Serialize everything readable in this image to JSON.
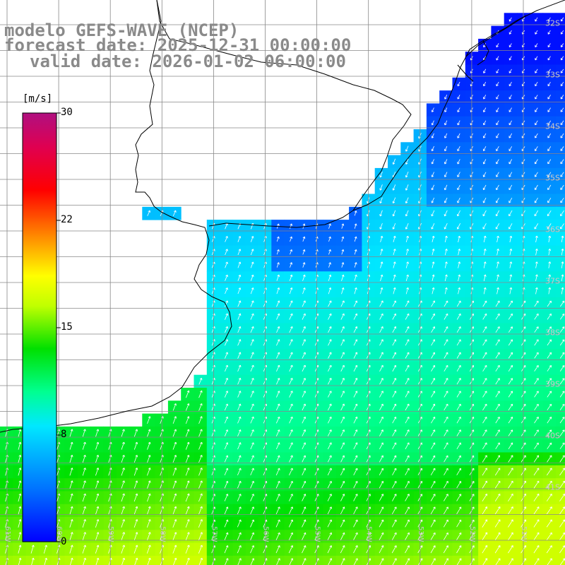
{
  "title": {
    "model": "modelo GEFS-WAVE (NCEP)",
    "forecast": "forecast date: 2025-12-31 00:00:00",
    "valid": "valid date: 2026-01-02 06:00:00"
  },
  "colorbar": {
    "unit": "[m/s]",
    "min": 0,
    "max": 30,
    "ticks": [
      "30",
      "22",
      "15",
      "8",
      "0"
    ],
    "tick_values": [
      30,
      22,
      15,
      8,
      0
    ],
    "colors": [
      "#0000ff",
      "#0070ff",
      "#00e8ff",
      "#00ff90",
      "#00e000",
      "#c0ff00",
      "#ffff00",
      "#ff8000",
      "#ff0000",
      "#e00050",
      "#b01080"
    ]
  },
  "lat_labels": [
    "32S",
    "33S",
    "34S",
    "35S",
    "36S",
    "37S",
    "38S",
    "39S",
    "40S",
    "41S"
  ],
  "lon_labels": [
    "61W",
    "60W",
    "59W",
    "58W",
    "57W",
    "56W",
    "55W",
    "54W",
    "53W",
    "52W",
    "51W"
  ],
  "colors": {
    "land": "#ffffff",
    "grid": "#888888",
    "coast": "#000000",
    "arrows": "#ffffff",
    "title": "#8a8a8a"
  }
}
